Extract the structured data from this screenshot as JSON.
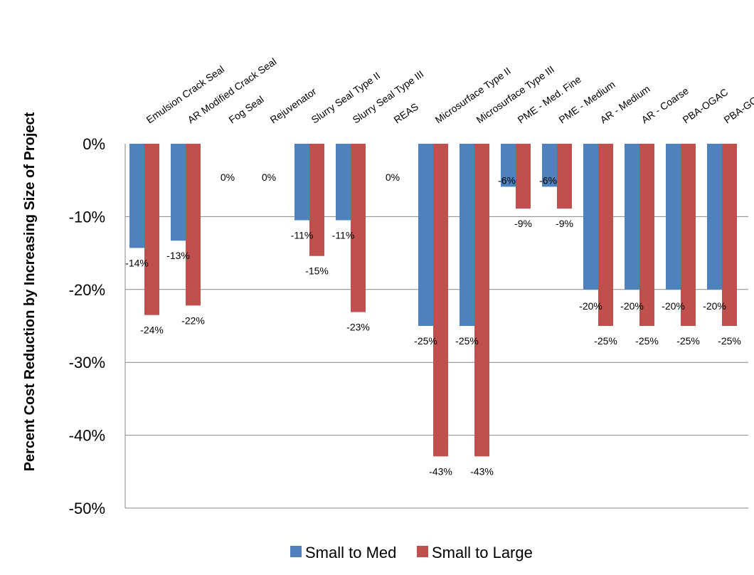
{
  "chart_data": {
    "type": "bar",
    "title": "",
    "xlabel": "",
    "ylabel": "Percent Cost Reduction by Increasing Size of Project",
    "ylim": [
      -50,
      0
    ],
    "yticks": [
      0,
      -10,
      -20,
      -30,
      -40,
      -50
    ],
    "ytick_format": "{v}%",
    "grid": true,
    "legend_position": "bottom",
    "categories": [
      "Emulsion Crack Seal",
      "AR Modified Crack Seal",
      "Fog Seal",
      "Rejuvenator",
      "Slurry Seal Type II",
      "Slurry Seal Type III",
      "REAS",
      "Microsurface Type II",
      "Microsurface Type III",
      "PME - Med. Fine",
      "PME - Medium",
      "AR - Medium",
      "AR - Coarse",
      "PBA-OGAC",
      "PBA-GG"
    ],
    "series": [
      {
        "name": "Small to Med",
        "color": "#4F81BD",
        "values": [
          -14.3,
          -13.3,
          0,
          0,
          -10.5,
          -10.5,
          0,
          -25,
          -25,
          -5.9,
          -5.9,
          -20,
          -20,
          -20,
          -20
        ],
        "labels": [
          "-14%",
          "-13%",
          "0%",
          "0%",
          "-11%",
          "-11%",
          "0%",
          "-25%",
          "-25%",
          "-6%",
          "-6%",
          "-20%",
          "-20%",
          "-20%",
          "-20%"
        ]
      },
      {
        "name": "Small to Large",
        "color": "#C0504D",
        "values": [
          -23.5,
          -22.2,
          0,
          0,
          -15.4,
          -23.1,
          0,
          -42.9,
          -42.9,
          -8.9,
          -8.9,
          -25,
          -25,
          -25,
          -25
        ],
        "labels": [
          "-24%",
          "-22%",
          "",
          "",
          "-15%",
          "-23%",
          "",
          "-43%",
          "-43%",
          "-9%",
          "-9%",
          "-25%",
          "-25%",
          "-25%",
          "-25%"
        ]
      }
    ]
  }
}
